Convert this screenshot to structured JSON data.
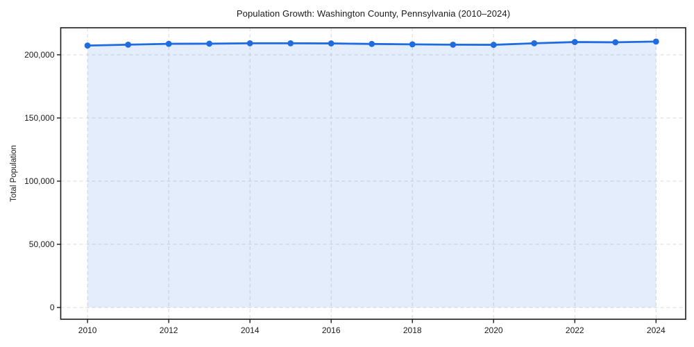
{
  "chart_data": {
    "type": "line",
    "title": "Population Growth: Washington County, Pennsylvania (2010–2024)",
    "xlabel": "",
    "ylabel": "Total Population",
    "x": [
      2010,
      2011,
      2012,
      2013,
      2014,
      2015,
      2016,
      2017,
      2018,
      2019,
      2020,
      2021,
      2022,
      2023,
      2024
    ],
    "series": [
      {
        "name": "Total Population",
        "values": [
          207300,
          208000,
          208700,
          208800,
          209100,
          209100,
          209000,
          208600,
          208300,
          208000,
          207900,
          209100,
          210100,
          209900,
          210500
        ]
      }
    ],
    "xticks": [
      2010,
      2012,
      2014,
      2016,
      2018,
      2020,
      2022,
      2024
    ],
    "xtick_labels": [
      "2010",
      "2012",
      "2014",
      "2016",
      "2018",
      "2020",
      "2022",
      "2024"
    ],
    "yticks": [
      0,
      50000,
      100000,
      150000,
      200000
    ],
    "ytick_labels": [
      "0",
      "50,000",
      "100,000",
      "150,000",
      "200,000"
    ],
    "xlim": [
      2009.34,
      2024.73
    ],
    "ylim": [
      -9300,
      221400
    ],
    "grid": true,
    "grid_style": "dashed",
    "legend_position": "none",
    "marker": "circle",
    "area_fill": true,
    "fill_baseline": 0,
    "colors": {
      "line": "#1f6be0",
      "fill": "#1f6be0",
      "fill_opacity": "0.12",
      "grid": "#d9d9d9",
      "axis": "#1a1a1a",
      "background": "#ffffff"
    }
  }
}
